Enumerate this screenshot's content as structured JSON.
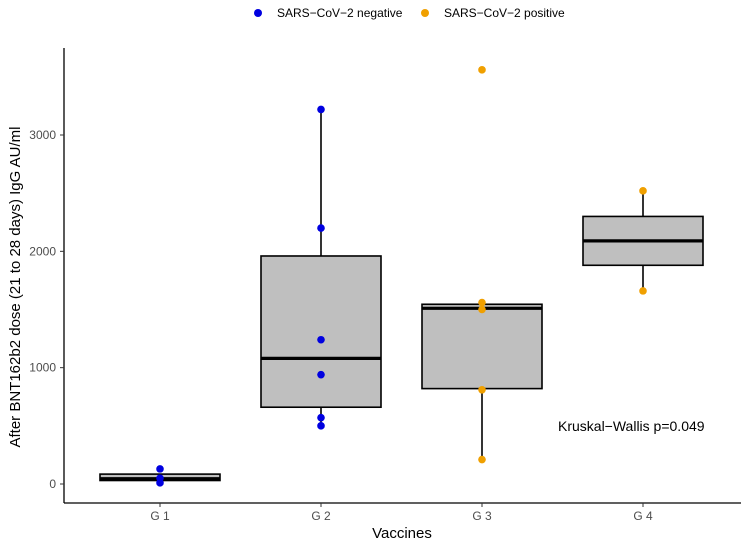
{
  "chart_data": {
    "type": "boxplot",
    "title": "",
    "xlabel": "Vaccines",
    "ylabel": "After BNT162b2 dose (21 to 28 days) IgG AU/ml",
    "categories": [
      "G 1",
      "G 2",
      "G 3",
      "G 4"
    ],
    "ylim": [
      -180,
      3720
    ],
    "yticks": [
      0,
      1000,
      2000,
      3000
    ],
    "ytick_labels": [
      "0",
      "1000",
      "2000",
      "3000"
    ],
    "grid": false,
    "legend": {
      "position": "top",
      "entries": [
        {
          "label": "SARS−CoV−2 negative",
          "color": "#0000e0"
        },
        {
          "label": "SARS−CoV−2 positive",
          "color": "#f0a000"
        }
      ]
    },
    "boxes": [
      {
        "category": "G 1",
        "whisker_low": 20,
        "q1": 30,
        "median": 45,
        "q3": 85,
        "whisker_high": 90
      },
      {
        "category": "G 2",
        "whisker_low": 500,
        "q1": 660,
        "median": 1080,
        "q3": 1960,
        "whisker_high": 3220
      },
      {
        "category": "G 3",
        "whisker_low": 210,
        "q1": 820,
        "median": 1510,
        "q3": 1545,
        "whisker_high": 1545
      },
      {
        "category": "G 4",
        "whisker_low": 1660,
        "q1": 1880,
        "median": 2090,
        "q3": 2300,
        "whisker_high": 2520
      }
    ],
    "series": [
      {
        "name": "SARS−CoV−2 negative",
        "color": "#0000e0",
        "points": [
          {
            "category": "G 1",
            "y": 130
          },
          {
            "category": "G 1",
            "y": 50
          },
          {
            "category": "G 1",
            "y": 10
          },
          {
            "category": "G 2",
            "y": 3220
          },
          {
            "category": "G 2",
            "y": 2200
          },
          {
            "category": "G 2",
            "y": 1240
          },
          {
            "category": "G 2",
            "y": 940
          },
          {
            "category": "G 2",
            "y": 570
          },
          {
            "category": "G 2",
            "y": 500
          }
        ]
      },
      {
        "name": "SARS−CoV−2 positive",
        "color": "#f0a000",
        "points": [
          {
            "category": "G 3",
            "y": 3560
          },
          {
            "category": "G 3",
            "y": 1560
          },
          {
            "category": "G 3",
            "y": 1500
          },
          {
            "category": "G 3",
            "y": 810
          },
          {
            "category": "G 3",
            "y": 210
          },
          {
            "category": "G 4",
            "y": 2520
          },
          {
            "category": "G 4",
            "y": 1660
          }
        ]
      }
    ],
    "annotation": "Kruskal−Wallis p=0.049",
    "box_fill": "#bfbfbf"
  }
}
